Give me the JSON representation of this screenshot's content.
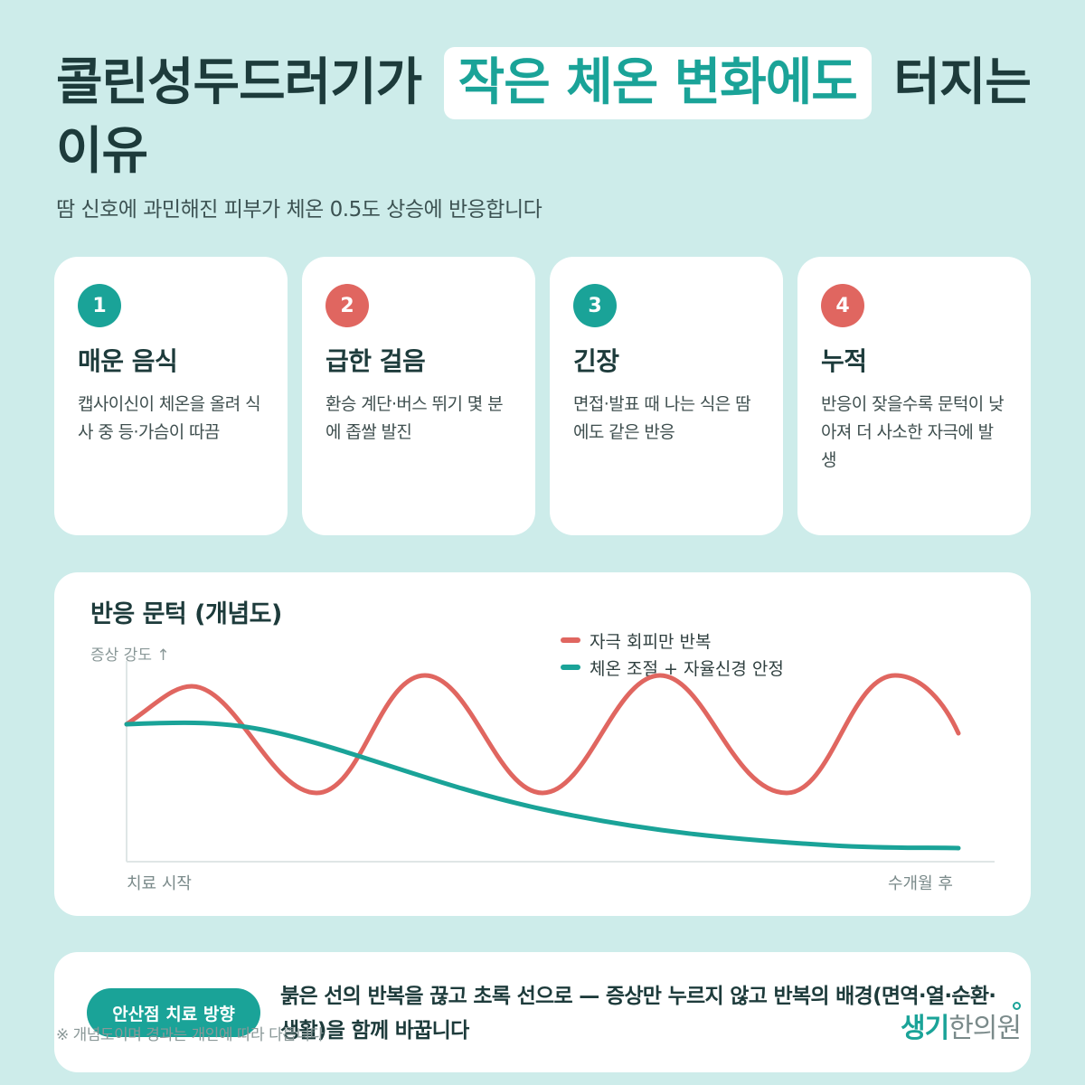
{
  "title": {
    "before": "콜린성두드러기가",
    "highlight": "작은 체온 변화에도",
    "after": "터지는 이유"
  },
  "subtitle": "땀 신호에 과민해진 피부가 체온 0.5도 상승에 반응합니다",
  "cards": [
    {
      "num": "1",
      "title": "매운 음식",
      "desc": "캡사이신이 체온을 올려 식사 중 등·가슴이 따끔",
      "color": "#1aa398"
    },
    {
      "num": "2",
      "title": "급한 걸음",
      "desc": "환승 계단·버스 뛰기 몇 분에 좁쌀 발진",
      "color": "#e06660"
    },
    {
      "num": "3",
      "title": "긴장",
      "desc": "면접·발표 때 나는 식은 땀에도 같은 반응",
      "color": "#1aa398"
    },
    {
      "num": "4",
      "title": "누적",
      "desc": "반응이 잦을수록 문턱이 낮아져 더 사소한 자극에 발생",
      "color": "#e06660"
    }
  ],
  "chart": {
    "title": "반응 문턱 (개념도)",
    "ylabel": "증상 강도 ↑",
    "legend": [
      "자극 회피만 반복",
      "체온 조절 + 자율신경 안정"
    ],
    "x_start": "치료 시작",
    "x_end": "수개월 후"
  },
  "chart_data": {
    "type": "line",
    "title": "반응 문턱 (개념도)",
    "xlabel": "",
    "ylabel": "증상 강도 ↑",
    "x_ticks": [
      "치료 시작",
      "수개월 후"
    ],
    "series": [
      {
        "name": "자극 회피만 반복",
        "color": "#e06660",
        "pattern": "oscillating, no downward trend"
      },
      {
        "name": "체온 조절 + 자율신경 안정",
        "color": "#1aa398",
        "pattern": "gradually decreasing"
      }
    ],
    "grid": false,
    "legend_position": "top-right"
  },
  "bottom": {
    "pill": "안산점 치료 방향",
    "text": "붉은 선의 반복을 끊고 초록 선으로 — 증상만 누르지 않고 반복의 배경(면역·열·순환·생활)을 함께 바꿉니다",
    "note": "※ 개념도이며 경과는 개인에 따라 다릅니다",
    "logo_a": "생기",
    "logo_b": "한의원"
  },
  "colors": {
    "accent": "#1aa398",
    "red": "#e06660",
    "background": "#cdecea"
  }
}
